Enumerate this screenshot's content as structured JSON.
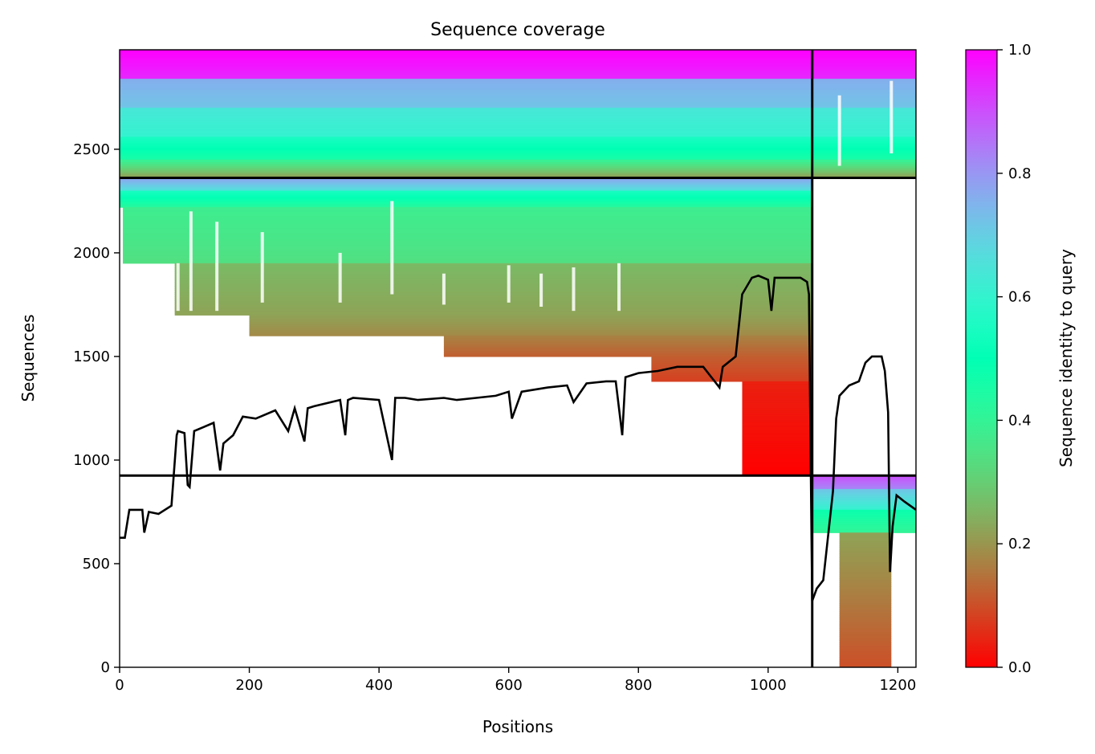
{
  "chart_data": {
    "type": "heatmap",
    "title": "Sequence coverage",
    "xlabel": "Positions",
    "ylabel": "Sequences",
    "xlim": [
      0,
      1228
    ],
    "ylim": [
      0,
      2980
    ],
    "x_ticks": [
      0,
      200,
      400,
      600,
      800,
      1000,
      1200
    ],
    "y_ticks": [
      0,
      500,
      1000,
      1500,
      2000,
      2500
    ],
    "colorbar": {
      "label": "Sequence identity to query",
      "range": [
        0.0,
        1.0
      ],
      "ticks": [
        0.0,
        0.2,
        0.4,
        0.6,
        0.8,
        1.0
      ],
      "tick_labels": [
        "0.0",
        "0.2",
        "0.4",
        "0.6",
        "0.8",
        "1.0"
      ],
      "colormap": "rainbow_r"
    },
    "dividers": {
      "vertical_x": [
        1068
      ],
      "horizontal_y": [
        2362,
        925
      ]
    },
    "coverage_bands": [
      {
        "y0": 2840,
        "y1": 2980,
        "x0": 0,
        "x1": 1228,
        "id0": 0.95,
        "id1": 1.0
      },
      {
        "y0": 2700,
        "y1": 2840,
        "x0": 0,
        "x1": 1228,
        "id0": 0.72,
        "id1": 0.76
      },
      {
        "y0": 2560,
        "y1": 2700,
        "x0": 0,
        "x1": 1228,
        "id0": 0.6,
        "id1": 0.64
      },
      {
        "y0": 2450,
        "y1": 2560,
        "x0": 0,
        "x1": 1228,
        "id0": 0.45,
        "id1": 0.55
      },
      {
        "y0": 2370,
        "y1": 2450,
        "x0": 0,
        "x1": 1228,
        "id0": 0.22,
        "id1": 0.4
      },
      {
        "y0": 2300,
        "y1": 2362,
        "x0": 0,
        "x1": 1068,
        "id0": 0.65,
        "id1": 0.78
      },
      {
        "y0": 2220,
        "y1": 2300,
        "x0": 0,
        "x1": 1068,
        "id0": 0.42,
        "id1": 0.55
      },
      {
        "y0": 1950,
        "y1": 2220,
        "x0": 5,
        "x1": 1068,
        "id0": 0.34,
        "id1": 0.38
      },
      {
        "y0": 1700,
        "y1": 1950,
        "x0": 85,
        "x1": 1068,
        "id0": 0.22,
        "id1": 0.26
      },
      {
        "y0": 1600,
        "y1": 1700,
        "x0": 200,
        "x1": 1068,
        "id0": 0.18,
        "id1": 0.22
      },
      {
        "y0": 1500,
        "y1": 1600,
        "x0": 500,
        "x1": 1068,
        "id0": 0.12,
        "id1": 0.17
      },
      {
        "y0": 1380,
        "y1": 1500,
        "x0": 820,
        "x1": 1068,
        "id0": 0.08,
        "id1": 0.12
      },
      {
        "y0": 925,
        "y1": 1380,
        "x0": 960,
        "x1": 1068,
        "id0": 0.0,
        "id1": 0.04
      },
      {
        "y0": 860,
        "y1": 925,
        "x0": 1068,
        "x1": 1228,
        "id0": 0.82,
        "id1": 0.9
      },
      {
        "y0": 760,
        "y1": 860,
        "x0": 1068,
        "x1": 1228,
        "id0": 0.6,
        "id1": 0.72
      },
      {
        "y0": 650,
        "y1": 760,
        "x0": 1068,
        "x1": 1228,
        "id0": 0.4,
        "id1": 0.48
      },
      {
        "y0": 0,
        "y1": 650,
        "x0": 1110,
        "x1": 1190,
        "id0": 0.1,
        "id1": 0.22
      }
    ],
    "coverage_line": {
      "x": [
        0,
        8,
        15,
        35,
        38,
        45,
        60,
        80,
        88,
        90,
        100,
        105,
        108,
        115,
        130,
        145,
        155,
        160,
        175,
        190,
        210,
        240,
        260,
        270,
        285,
        290,
        300,
        340,
        348,
        352,
        360,
        400,
        420,
        425,
        440,
        460,
        500,
        520,
        550,
        580,
        600,
        605,
        620,
        640,
        660,
        690,
        700,
        720,
        750,
        765,
        775,
        780,
        800,
        830,
        860,
        900,
        925,
        930,
        950,
        960,
        975,
        985,
        1000,
        1005,
        1010,
        1050,
        1060,
        1063,
        1068,
        1075,
        1085,
        1100,
        1105,
        1110,
        1125,
        1140,
        1150,
        1160,
        1175,
        1180,
        1185,
        1188,
        1192,
        1198,
        1210,
        1228
      ],
      "y": [
        625,
        625,
        760,
        760,
        650,
        750,
        740,
        780,
        1120,
        1140,
        1130,
        880,
        870,
        1140,
        1160,
        1180,
        950,
        1080,
        1120,
        1210,
        1200,
        1240,
        1140,
        1250,
        1090,
        1250,
        1260,
        1290,
        1120,
        1290,
        1300,
        1290,
        1000,
        1300,
        1300,
        1290,
        1300,
        1290,
        1300,
        1310,
        1330,
        1200,
        1330,
        1340,
        1350,
        1360,
        1280,
        1370,
        1380,
        1380,
        1120,
        1400,
        1420,
        1430,
        1450,
        1450,
        1350,
        1450,
        1500,
        1800,
        1880,
        1890,
        1870,
        1720,
        1880,
        1880,
        1860,
        1800,
        320,
        380,
        420,
        850,
        1200,
        1310,
        1360,
        1380,
        1470,
        1500,
        1500,
        1430,
        1230,
        460,
        680,
        830,
        800,
        760
      ]
    },
    "white_gaps": [
      {
        "x": 90,
        "y0": 1720,
        "y1": 1950
      },
      {
        "x": 110,
        "y0": 1720,
        "y1": 2200
      },
      {
        "x": 150,
        "y0": 1720,
        "y1": 2150
      },
      {
        "x": 220,
        "y0": 1760,
        "y1": 2100
      },
      {
        "x": 340,
        "y0": 1760,
        "y1": 2000
      },
      {
        "x": 420,
        "y0": 1800,
        "y1": 2250
      },
      {
        "x": 500,
        "y0": 1750,
        "y1": 1900
      },
      {
        "x": 600,
        "y0": 1760,
        "y1": 1940
      },
      {
        "x": 650,
        "y0": 1740,
        "y1": 1900
      },
      {
        "x": 700,
        "y0": 1720,
        "y1": 1930
      },
      {
        "x": 770,
        "y0": 1720,
        "y1": 1950
      },
      {
        "x": 1110,
        "y0": 2420,
        "y1": 2760
      },
      {
        "x": 1190,
        "y0": 2480,
        "y1": 2830
      }
    ]
  }
}
